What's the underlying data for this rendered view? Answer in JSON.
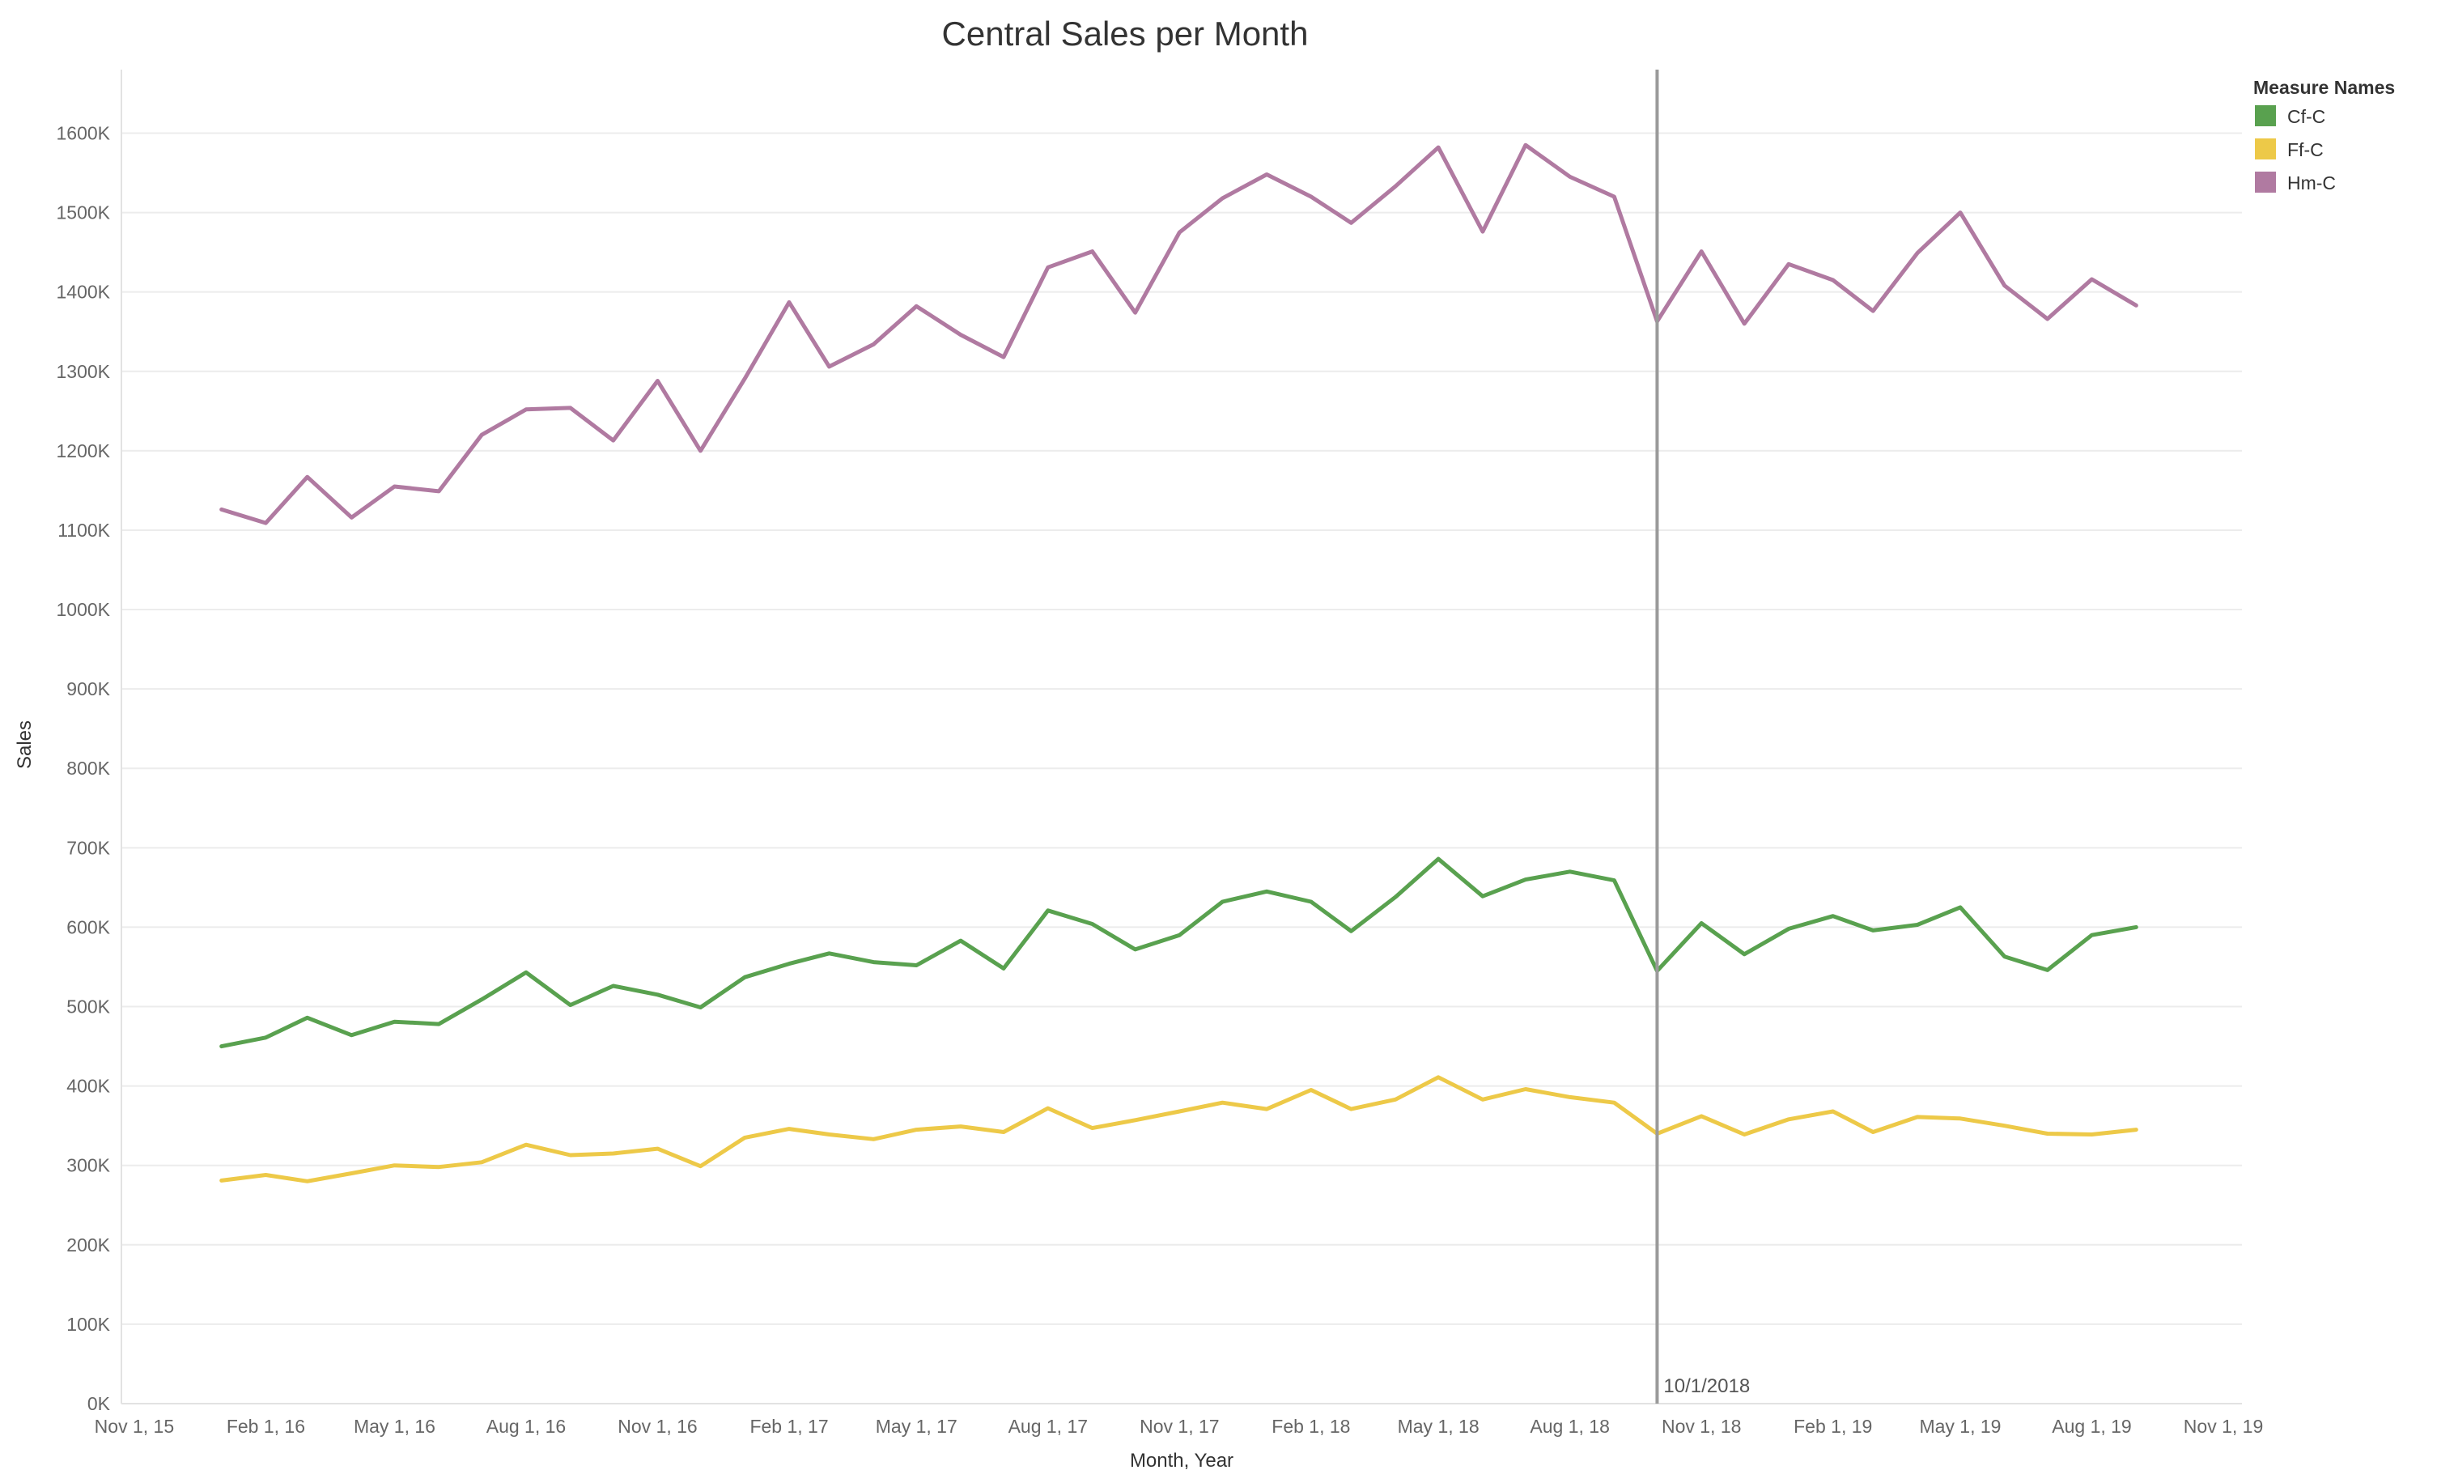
{
  "chart_data": {
    "type": "line",
    "title": "Central Sales per Month",
    "xlabel": "Month, Year",
    "ylabel": "Sales",
    "ylim": [
      0,
      1680000
    ],
    "y_ticks": [
      {
        "value": 0,
        "label": "0K"
      },
      {
        "value": 100000,
        "label": "100K"
      },
      {
        "value": 200000,
        "label": "200K"
      },
      {
        "value": 300000,
        "label": "300K"
      },
      {
        "value": 400000,
        "label": "400K"
      },
      {
        "value": 500000,
        "label": "500K"
      },
      {
        "value": 600000,
        "label": "600K"
      },
      {
        "value": 700000,
        "label": "700K"
      },
      {
        "value": 800000,
        "label": "800K"
      },
      {
        "value": 900000,
        "label": "900K"
      },
      {
        "value": 1000000,
        "label": "1000K"
      },
      {
        "value": 1100000,
        "label": "1100K"
      },
      {
        "value": 1200000,
        "label": "1200K"
      },
      {
        "value": 1300000,
        "label": "1300K"
      },
      {
        "value": 1400000,
        "label": "1400K"
      },
      {
        "value": 1500000,
        "label": "1500K"
      },
      {
        "value": 1600000,
        "label": "1600K"
      }
    ],
    "xlim": [
      "2015-10-23",
      "2019-11-14"
    ],
    "x_ticks": [
      {
        "date": "2015-11-01",
        "label": "Nov 1, 15"
      },
      {
        "date": "2016-02-01",
        "label": "Feb 1, 16"
      },
      {
        "date": "2016-05-01",
        "label": "May 1, 16"
      },
      {
        "date": "2016-08-01",
        "label": "Aug 1, 16"
      },
      {
        "date": "2016-11-01",
        "label": "Nov 1, 16"
      },
      {
        "date": "2017-02-01",
        "label": "Feb 1, 17"
      },
      {
        "date": "2017-05-01",
        "label": "May 1, 17"
      },
      {
        "date": "2017-08-01",
        "label": "Aug 1, 17"
      },
      {
        "date": "2017-11-01",
        "label": "Nov 1, 17"
      },
      {
        "date": "2018-02-01",
        "label": "Feb 1, 18"
      },
      {
        "date": "2018-05-01",
        "label": "May 1, 18"
      },
      {
        "date": "2018-08-01",
        "label": "Aug 1, 18"
      },
      {
        "date": "2018-11-01",
        "label": "Nov 1, 18"
      },
      {
        "date": "2019-02-01",
        "label": "Feb 1, 19"
      },
      {
        "date": "2019-05-01",
        "label": "May 1, 19"
      },
      {
        "date": "2019-08-01",
        "label": "Aug 1, 19"
      },
      {
        "date": "2019-11-01",
        "label": "Nov 1, 19"
      }
    ],
    "x": [
      "2016-01-01",
      "2016-02-01",
      "2016-03-01",
      "2016-04-01",
      "2016-05-01",
      "2016-06-01",
      "2016-07-01",
      "2016-08-01",
      "2016-09-01",
      "2016-10-01",
      "2016-11-01",
      "2016-12-01",
      "2017-01-01",
      "2017-02-01",
      "2017-03-01",
      "2017-04-01",
      "2017-05-01",
      "2017-06-01",
      "2017-07-01",
      "2017-08-01",
      "2017-09-01",
      "2017-10-01",
      "2017-11-01",
      "2017-12-01",
      "2018-01-01",
      "2018-02-01",
      "2018-03-01",
      "2018-04-01",
      "2018-05-01",
      "2018-06-01",
      "2018-07-01",
      "2018-08-01",
      "2018-09-01",
      "2018-10-01",
      "2018-11-01",
      "2018-12-01",
      "2019-01-01",
      "2019-02-01",
      "2019-03-01",
      "2019-04-01",
      "2019-05-01",
      "2019-06-01",
      "2019-07-01",
      "2019-08-01",
      "2019-09-01",
      "2019-10-01"
    ],
    "series": [
      {
        "name": "Cf-C",
        "color": "#59a14f",
        "values": [
          450000,
          461000,
          486000,
          464000,
          481000,
          478000,
          509000,
          543000,
          502000,
          526000,
          515000,
          499000,
          537000,
          554000,
          567000,
          556000,
          552000,
          583000,
          548000,
          621000,
          604000,
          572000,
          590000,
          632000,
          645000,
          632000,
          595000,
          638000,
          686000,
          639000,
          660000,
          670000,
          659000,
          545000,
          605000,
          566000,
          598000,
          614000,
          596000,
          603000,
          625000,
          563000,
          546000,
          590000,
          600000,
          null
        ]
      },
      {
        "name": "Ff-C",
        "color": "#edc948",
        "values": [
          281000,
          288000,
          280000,
          290000,
          300000,
          298000,
          304000,
          326000,
          313000,
          315000,
          321000,
          299000,
          335000,
          346000,
          339000,
          333000,
          345000,
          349000,
          342000,
          372000,
          347000,
          357000,
          368000,
          379000,
          371000,
          395000,
          371000,
          383000,
          411000,
          383000,
          396000,
          386000,
          379000,
          340000,
          362000,
          339000,
          358000,
          368000,
          342000,
          361000,
          359000,
          350000,
          340000,
          339000,
          345000,
          null
        ]
      },
      {
        "name": "Hm-C",
        "color": "#b07aa1",
        "values": [
          1126000,
          1109000,
          1167000,
          1116000,
          1155000,
          1149000,
          1220000,
          1252000,
          1254000,
          1213000,
          1288000,
          1200000,
          1291000,
          1387000,
          1306000,
          1334000,
          1382000,
          1346000,
          1318000,
          1431000,
          1451000,
          1374000,
          1475000,
          1518000,
          1548000,
          1520000,
          1487000,
          1533000,
          1582000,
          1476000,
          1585000,
          1545000,
          1520000,
          1363000,
          1451000,
          1360000,
          1435000,
          1415000,
          1376000,
          1449000,
          1500000,
          1408000,
          1366000,
          1416000,
          1383000,
          null
        ]
      }
    ],
    "reference_line": {
      "date": "2018-10-01",
      "label": "10/1/2018"
    },
    "legend": {
      "title": "Measure Names",
      "placement": "top-right"
    },
    "grid": true
  }
}
